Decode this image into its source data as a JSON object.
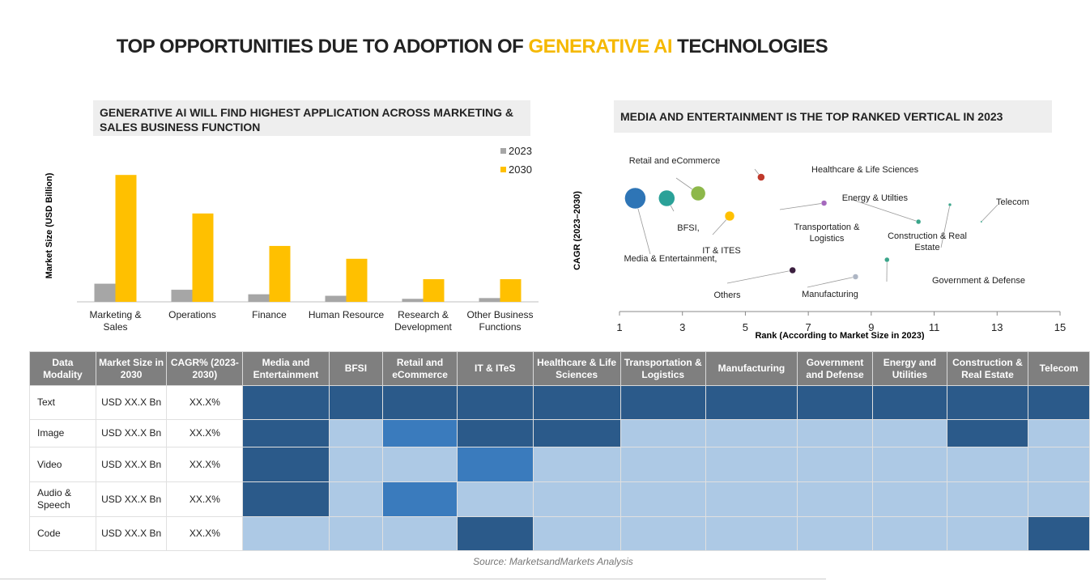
{
  "title": {
    "prefix": "TOP OPPORTUNITIES DUE TO ADOPTION OF ",
    "highlight": "GENERATIVE AI",
    "suffix": " TECHNOLOGIES",
    "highlight_color": "#f5b800"
  },
  "chart_data": [
    {
      "type": "bar",
      "title": "GENERATIVE AI WILL FIND HIGHEST APPLICATION ACROSS MARKETING & SALES BUSINESS FUNCTION",
      "ylabel": "Market Size (USD Billion)",
      "xlabel": "",
      "categories": [
        "Marketing & Sales",
        "Operations",
        "Finance",
        "Human Resource",
        "Research & Development",
        "Other Business Functions"
      ],
      "series": [
        {
          "name": "2023",
          "color": "#a6a6a6",
          "values": [
            24,
            16,
            10,
            8,
            4,
            5
          ]
        },
        {
          "name": "2030",
          "color": "#ffc000",
          "values": [
            168,
            117,
            74,
            57,
            30,
            30
          ]
        }
      ],
      "ylim": [
        0,
        180
      ],
      "grid": false,
      "legend": "top-right"
    },
    {
      "type": "scatter",
      "title": "MEDIA AND ENTERTAINMENT IS THE TOP RANKED VERTICAL IN 2023",
      "xlabel": "Rank (According to Market Size in 2023)",
      "ylabel": "CAGR (2023–2030)",
      "xlim": [
        1,
        15
      ],
      "xticks": [
        "1",
        "3",
        "5",
        "7",
        "9",
        "11",
        "13",
        "15"
      ],
      "ylim": [
        0,
        100
      ],
      "grid": false,
      "points": [
        {
          "label": "Media & Entertainment,",
          "x": 1.5,
          "y": 70,
          "size": 13,
          "color": "#2e75b6"
        },
        {
          "label": "BFSI,",
          "x": 2.5,
          "y": 70,
          "size": 10,
          "color": "#2aa198"
        },
        {
          "label": "Retail and eCommerce",
          "x": 3.5,
          "y": 73,
          "size": 9,
          "color": "#8db84a"
        },
        {
          "label": "IT & ITES",
          "x": 4.5,
          "y": 59,
          "size": 6,
          "color": "#ffc000"
        },
        {
          "label": "Healthcare & Life Sciences",
          "x": 5.5,
          "y": 83,
          "size": 4.5,
          "color": "#c0392b"
        },
        {
          "label": "Others",
          "x": 6.5,
          "y": 25.5,
          "size": 4,
          "color": "#3b1f3f"
        },
        {
          "label": "Transportation & Logistics",
          "x": 7.5,
          "y": 67,
          "size": 3.5,
          "color": "#a569bd"
        },
        {
          "label": "Manufacturing",
          "x": 8.5,
          "y": 21.5,
          "size": 3.5,
          "color": "#aeb6c4"
        },
        {
          "label": "Government & Defense",
          "x": 9.5,
          "y": 32,
          "size": 3,
          "color": "#3aa58a"
        },
        {
          "label": "Energy & Utilties",
          "x": 10.5,
          "y": 55.5,
          "size": 3,
          "color": "#3aa58a"
        },
        {
          "label": "Construction & Real Estate",
          "x": 11.5,
          "y": 66,
          "size": 2,
          "color": "#3aa58a"
        },
        {
          "label": "Telecom",
          "x": 12.5,
          "y": 55.5,
          "size": 1.2,
          "color": "#3aa58a"
        }
      ]
    }
  ],
  "table": {
    "headers": [
      "Data Modality",
      "Market Size in 2030",
      "CAGR% (2023-2030)",
      "Media and Entertainment",
      "BFSI",
      "Retail and eCommerce",
      "IT & ITeS",
      "Healthcare & Life Sciences",
      "Transportation & Logistics",
      "Manufacturing",
      "Government and Defense",
      "Energy and Utilities",
      "Construction & Real Estate",
      "Telecom"
    ],
    "level_colors": [
      "#adc9e5",
      "#3a7bbd",
      "#2b5a8a"
    ],
    "rows": [
      {
        "modality": "Text",
        "market_size": "USD XX.X Bn",
        "cagr": "XX.X%",
        "levels": [
          2,
          2,
          2,
          2,
          2,
          2,
          2,
          2,
          2,
          2,
          2
        ]
      },
      {
        "modality": "Image",
        "market_size": "USD XX.X Bn",
        "cagr": "XX.X%",
        "levels": [
          2,
          0,
          1,
          2,
          2,
          0,
          0,
          0,
          0,
          2,
          0
        ]
      },
      {
        "modality": "Video",
        "market_size": "USD XX.X Bn",
        "cagr": "XX.X%",
        "levels": [
          2,
          0,
          0,
          1,
          0,
          0,
          0,
          0,
          0,
          0,
          0
        ]
      },
      {
        "modality": "Audio & Speech",
        "market_size": "USD XX.X Bn",
        "cagr": "XX.X%",
        "levels": [
          2,
          0,
          1,
          0,
          0,
          0,
          0,
          0,
          0,
          0,
          0
        ]
      },
      {
        "modality": "Code",
        "market_size": "USD XX.X Bn",
        "cagr": "XX.X%",
        "levels": [
          0,
          0,
          0,
          2,
          0,
          0,
          0,
          0,
          0,
          0,
          2
        ]
      }
    ]
  },
  "source": "Source: MarketsandMarkets Analysis"
}
